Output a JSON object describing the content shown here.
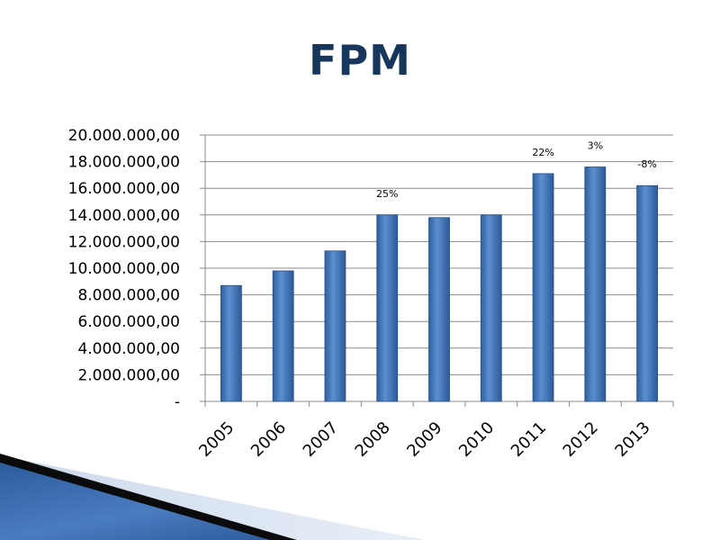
{
  "slide": {
    "title": "FPM"
  },
  "chart_data": {
    "type": "bar",
    "categories": [
      "2005",
      "2006",
      "2007",
      "2008",
      "2009",
      "2010",
      "2011",
      "2012",
      "2013"
    ],
    "values": [
      8700000,
      9800000,
      11300000,
      14000000,
      13800000,
      14000000,
      17100000,
      17600000,
      16200000
    ],
    "data_labels": [
      "",
      "",
      "",
      "25%",
      "",
      "",
      "22%",
      "3%",
      "-8%"
    ],
    "ylim": [
      0,
      20000000
    ],
    "yticks": [
      0,
      2000000,
      4000000,
      6000000,
      8000000,
      10000000,
      12000000,
      14000000,
      16000000,
      18000000,
      20000000
    ],
    "ytick_labels": [
      "-",
      "2.000.000,00",
      "4.000.000,00",
      "6.000.000,00",
      "8.000.000,00",
      "10.000.000,00",
      "12.000.000,00",
      "14.000.000,00",
      "16.000.000,00",
      "18.000.000,00",
      "20.000.000,00"
    ],
    "grid": true,
    "legend": "none",
    "bar_color": "#4f81bd",
    "title": "",
    "xlabel": "",
    "ylabel": ""
  }
}
